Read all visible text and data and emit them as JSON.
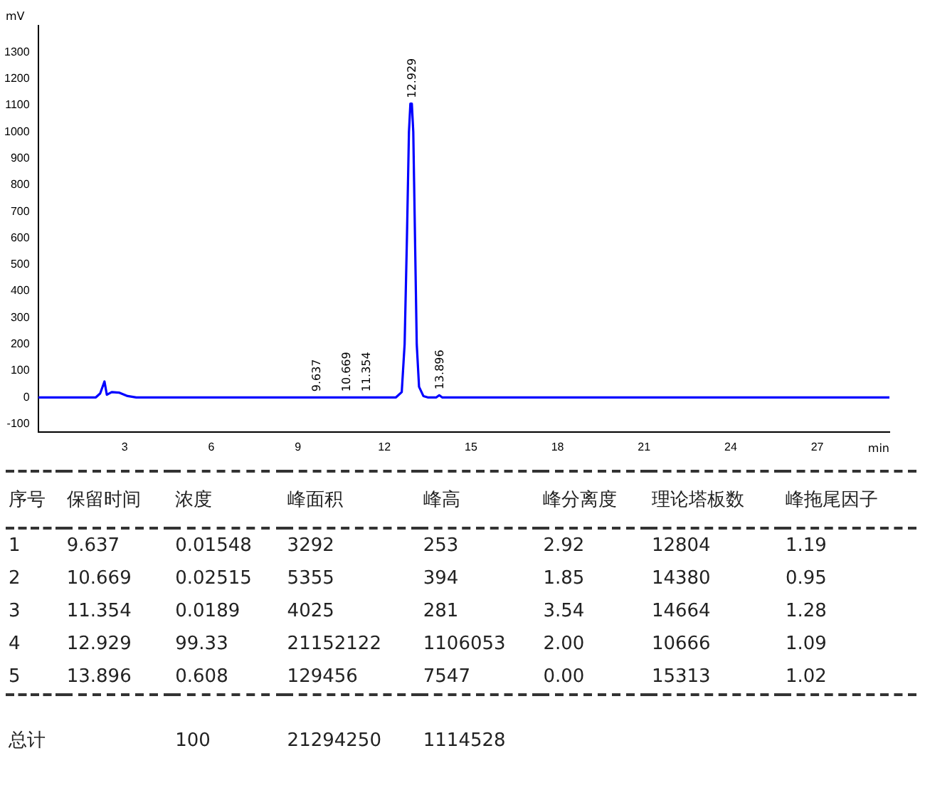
{
  "chart_data": {
    "type": "line",
    "xlabel": "min",
    "ylabel": "mV",
    "series": [
      {
        "color": "#0000ff",
        "x": [
          0,
          2.0,
          2.15,
          2.3,
          2.38,
          2.55,
          2.8,
          3.1,
          3.4,
          12.4,
          12.6,
          12.7,
          12.78,
          12.85,
          12.9,
          12.95,
          13.0,
          13.06,
          13.12,
          13.2,
          13.35,
          13.5,
          13.8,
          13.9,
          14.0,
          29.5
        ],
        "values": [
          0,
          0,
          15,
          60,
          10,
          20,
          18,
          5,
          0,
          0,
          20,
          200,
          600,
          1000,
          1106,
          1106,
          1000,
          600,
          200,
          40,
          5,
          0,
          0,
          8,
          0,
          0
        ]
      }
    ],
    "xlim": [
      0,
      29.5
    ],
    "xticks": [
      3,
      6,
      9,
      12,
      15,
      18,
      21,
      24,
      27
    ],
    "ylim": [
      -130,
      1400
    ],
    "yticks": [
      -100,
      0,
      100,
      200,
      300,
      400,
      500,
      600,
      700,
      800,
      900,
      1000,
      1100,
      1200,
      1300
    ],
    "grid": false,
    "legend": false,
    "marker": "none",
    "line_style": "solid",
    "annotations": [
      {
        "text": "9.637",
        "x": 9.637,
        "y": 0
      },
      {
        "text": "10.669",
        "x": 10.669,
        "y": 0
      },
      {
        "text": "11.354",
        "x": 11.354,
        "y": 0
      },
      {
        "text": "12.929",
        "x": 12.929,
        "y": 1106
      },
      {
        "text": "13.896",
        "x": 13.896,
        "y": 8
      },
      "序号\t保留时间\t浓度\t峰面积\t峰高\t峰分离度\t理论塔板数\t峰拖尾因子",
      "1\t9.637\t0.01548\t3292\t253\t2.92\t12804\t1.19",
      "2\t10.669\t0.02515\t5355\t394\t1.85\t14380\t0.95",
      "3\t11.354\t0.0189\t4025\t281\t3.54\t14664\t1.28",
      "4\t12.929\t99.33\t21152122\t1106053\t2.00\t10666\t1.09",
      "5\t13.896\t0.608\t129456\t7547\t0.00\t15313\t1.02",
      "总计\t\t100\t21294250\t1114528\t\t\t"
    ]
  }
}
